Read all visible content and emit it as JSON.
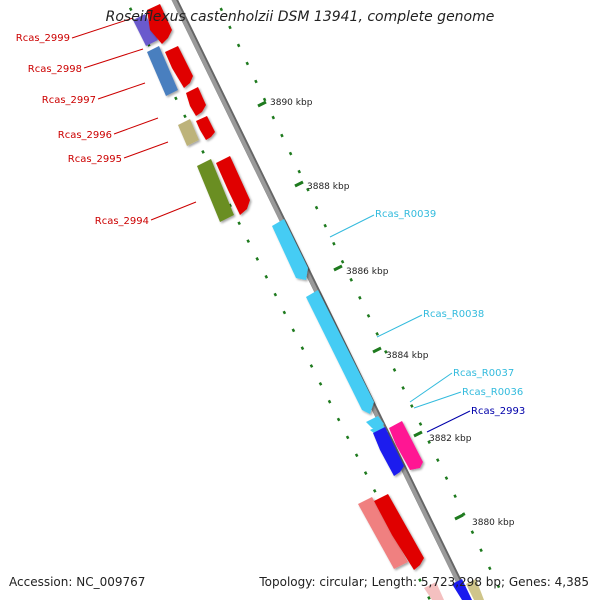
{
  "header": {
    "title": "Roseiflexus castenholzii DSM 13941, complete genome"
  },
  "footer": {
    "accession": "Accession: NC_009767",
    "summary": "Topology: circular; Length: 5,723,298 bp; Genes: 4,385"
  },
  "colors": {
    "backbone": "#9a9a9a",
    "tick": "#1e7a1e",
    "label_red": "#cc0000",
    "label_cyan": "#33bbdd",
    "label_blue": "#0000aa"
  },
  "scale_ticks": [
    {
      "label": "3890 kbp"
    },
    {
      "label": "3888 kbp"
    },
    {
      "label": "3886 kbp"
    },
    {
      "label": "3884 kbp"
    },
    {
      "label": "3882 kbp"
    },
    {
      "label": "3880 kbp"
    }
  ],
  "gene_labels": [
    {
      "name": "Rcas_2999",
      "color": "#cc0000"
    },
    {
      "name": "Rcas_2998",
      "color": "#cc0000"
    },
    {
      "name": "Rcas_2997",
      "color": "#cc0000"
    },
    {
      "name": "Rcas_2996",
      "color": "#cc0000"
    },
    {
      "name": "Rcas_2995",
      "color": "#cc0000"
    },
    {
      "name": "Rcas_2994",
      "color": "#cc0000"
    },
    {
      "name": "Rcas_R0039",
      "color": "#33bbdd"
    },
    {
      "name": "Rcas_R0038",
      "color": "#33bbdd"
    },
    {
      "name": "Rcas_R0037",
      "color": "#33bbdd"
    },
    {
      "name": "Rcas_R0036",
      "color": "#33bbdd"
    },
    {
      "name": "Rcas_2993",
      "color": "#0000aa"
    }
  ]
}
